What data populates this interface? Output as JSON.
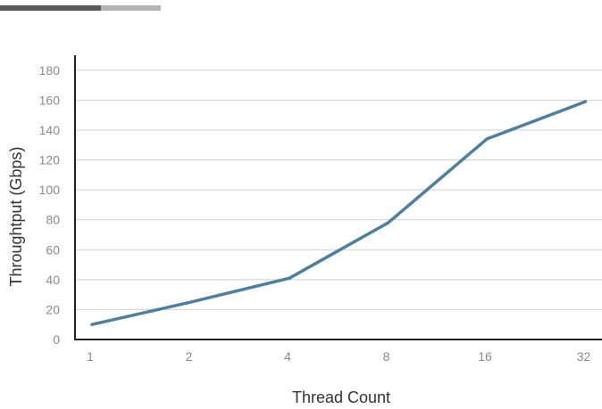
{
  "decoration": {
    "bar_dark_color": "#5a5a5a",
    "bar_light_color": "#b4b4b8"
  },
  "chart_data": {
    "type": "line",
    "xlabel": "Thread Count",
    "ylabel": "Throughtput (Gbps)",
    "x_scale": "log2",
    "categories": [
      "1",
      "2",
      "4",
      "8",
      "16",
      "32"
    ],
    "x": [
      1,
      2,
      4,
      8,
      16,
      32
    ],
    "values": [
      10,
      25,
      41,
      78,
      134,
      159
    ],
    "ylim": [
      0,
      190
    ],
    "yticks": [
      0,
      20,
      40,
      60,
      80,
      100,
      120,
      140,
      160,
      180
    ],
    "grid": true,
    "legend": "none",
    "line_color": "#4e7f9c",
    "grid_color": "#d0d0d0",
    "axis_color": "#222222"
  }
}
